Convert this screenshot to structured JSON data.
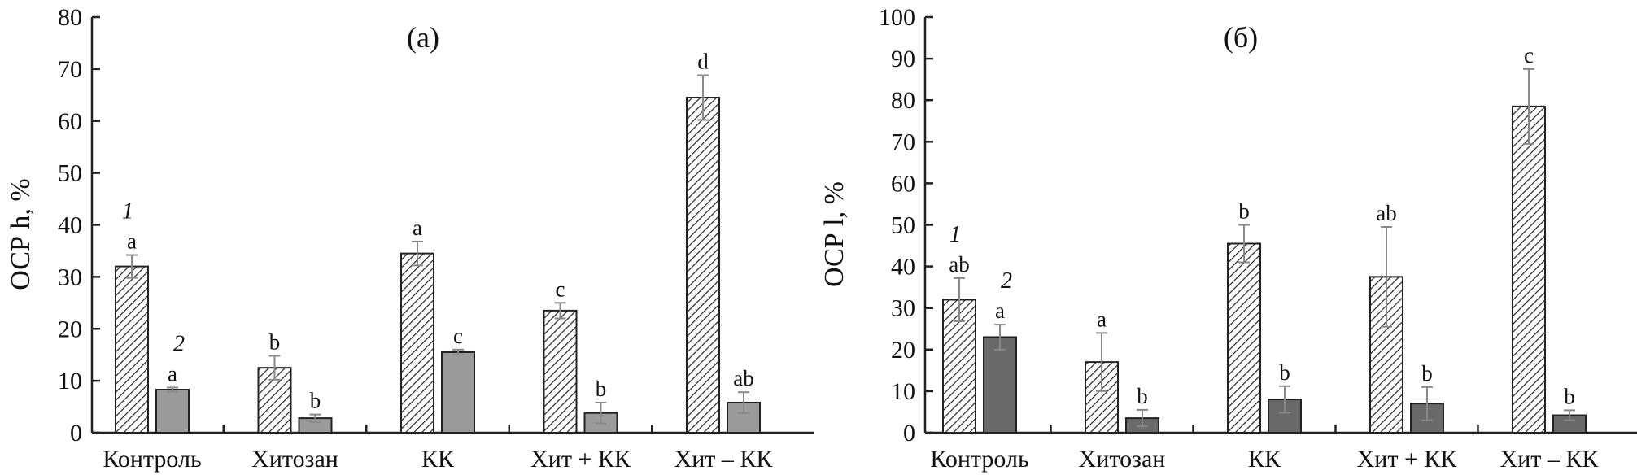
{
  "chart_data": [
    {
      "type": "bar",
      "title": "(a)",
      "ylabel": "ОСР h, %",
      "ylim": [
        0,
        80
      ],
      "yticks": [
        0,
        10,
        20,
        30,
        40,
        50,
        60,
        70,
        80
      ],
      "categories": [
        "Контроль",
        "Хитозан",
        "КК",
        "Хит + КК",
        "Хит – КК"
      ],
      "series": [
        {
          "name": "1",
          "pattern": "hatched",
          "color": "#ffffff",
          "values": [
            32,
            12.5,
            34.5,
            23.5,
            64.5
          ],
          "errors": [
            2.2,
            2.3,
            2.3,
            1.5,
            4.3
          ],
          "labels": [
            "a",
            "b",
            "a",
            "c",
            "d"
          ]
        },
        {
          "name": "2",
          "pattern": "solid",
          "color": "#9b9b9b",
          "values": [
            8.3,
            2.8,
            15.5,
            3.8,
            5.8
          ],
          "errors": [
            0.4,
            0.7,
            0.5,
            2,
            2
          ],
          "labels": [
            "a",
            "b",
            "c",
            "b",
            "ab"
          ]
        }
      ]
    },
    {
      "type": "bar",
      "title": "(б)",
      "ylabel": "ОСР l, %",
      "ylim": [
        0,
        100
      ],
      "yticks": [
        0,
        10,
        20,
        30,
        40,
        50,
        60,
        70,
        80,
        90,
        100
      ],
      "categories": [
        "Контроль",
        "Хитозан",
        "КК",
        "Хит + КК",
        "Хит – КК"
      ],
      "series": [
        {
          "name": "1",
          "pattern": "hatched",
          "color": "#ffffff",
          "values": [
            32,
            17,
            45.5,
            37.5,
            78.5
          ],
          "errors": [
            5.2,
            7,
            4.5,
            12,
            9
          ],
          "labels": [
            "ab",
            "a",
            "b",
            "ab",
            "c"
          ]
        },
        {
          "name": "2",
          "pattern": "solid",
          "color": "#6a6a6a",
          "values": [
            23,
            3.5,
            8,
            7,
            4.2
          ],
          "errors": [
            3,
            2,
            3.2,
            4,
            1.2
          ],
          "labels": [
            "a",
            "b",
            "b",
            "b",
            "b"
          ]
        }
      ]
    }
  ]
}
